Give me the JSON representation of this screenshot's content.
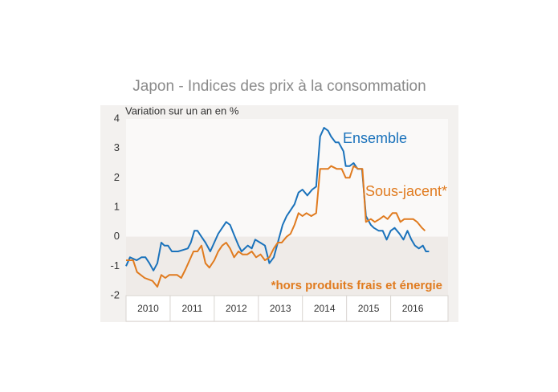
{
  "chart_data": {
    "type": "line",
    "title": "Japon - Indices des prix à la consommation",
    "y_label": "Variation sur un an en %",
    "annotation": "*hors produits frais et énergie",
    "xlim": [
      2010,
      2017.3
    ],
    "xticks": [
      {
        "value": 2010,
        "label": "2010"
      },
      {
        "value": 2011,
        "label": "2011"
      },
      {
        "value": 2012,
        "label": "2012"
      },
      {
        "value": 2013,
        "label": "2013"
      },
      {
        "value": 2014,
        "label": "2014"
      },
      {
        "value": 2015,
        "label": "2015"
      },
      {
        "value": 2016,
        "label": "2016"
      }
    ],
    "ylim": [
      -2,
      4
    ],
    "yticks": [
      -2,
      -1,
      0,
      1,
      2,
      3,
      4
    ],
    "series": [
      {
        "name": "Ensemble",
        "color": "#1a72bb",
        "x": [
          2010.0,
          2010.09,
          2010.24,
          2010.35,
          2010.44,
          2010.53,
          2010.62,
          2010.71,
          2010.8,
          2010.87,
          2010.95,
          2011.04,
          2011.18,
          2011.29,
          2011.4,
          2011.47,
          2011.55,
          2011.62,
          2011.71,
          2011.8,
          2011.91,
          2012.09,
          2012.27,
          2012.36,
          2012.44,
          2012.55,
          2012.62,
          2012.76,
          2012.85,
          2012.93,
          2013.04,
          2013.15,
          2013.25,
          2013.35,
          2013.44,
          2013.55,
          2013.64,
          2013.73,
          2013.82,
          2013.91,
          2014.0,
          2014.11,
          2014.22,
          2014.31,
          2014.4,
          2014.49,
          2014.58,
          2014.65,
          2014.75,
          2014.82,
          2014.93,
          2014.98,
          2015.07,
          2015.16,
          2015.25,
          2015.35,
          2015.44,
          2015.55,
          2015.62,
          2015.73,
          2015.82,
          2015.91,
          2016.0,
          2016.09,
          2016.2,
          2016.29,
          2016.38,
          2016.47,
          2016.55,
          2016.64,
          2016.73,
          2016.8,
          2016.87
        ],
        "values": [
          -1.0,
          -0.7,
          -0.8,
          -0.7,
          -0.7,
          -0.9,
          -1.15,
          -0.9,
          -0.2,
          -0.3,
          -0.3,
          -0.5,
          -0.5,
          -0.45,
          -0.4,
          -0.2,
          0.2,
          0.2,
          0.0,
          -0.2,
          -0.5,
          0.1,
          0.5,
          0.4,
          0.1,
          -0.3,
          -0.5,
          -0.3,
          -0.4,
          -0.1,
          -0.2,
          -0.3,
          -0.9,
          -0.7,
          -0.2,
          0.4,
          0.7,
          0.9,
          1.1,
          1.5,
          1.6,
          1.4,
          1.6,
          1.7,
          3.4,
          3.7,
          3.6,
          3.4,
          3.2,
          3.2,
          2.9,
          2.4,
          2.4,
          2.5,
          2.3,
          2.3,
          0.7,
          0.4,
          0.3,
          0.2,
          0.2,
          -0.1,
          0.2,
          0.3,
          0.1,
          -0.1,
          0.2,
          -0.1,
          -0.3,
          -0.4,
          -0.3,
          -0.5,
          -0.5
        ]
      },
      {
        "name": "Sous-jacent*",
        "color": "#e07b1f",
        "x": [
          2010.0,
          2010.16,
          2010.25,
          2010.42,
          2010.6,
          2010.71,
          2010.8,
          2010.89,
          2010.98,
          2011.16,
          2011.25,
          2011.35,
          2011.44,
          2011.53,
          2011.62,
          2011.71,
          2011.8,
          2011.89,
          2012.0,
          2012.09,
          2012.18,
          2012.27,
          2012.36,
          2012.45,
          2012.55,
          2012.64,
          2012.75,
          2012.85,
          2012.95,
          2013.05,
          2013.15,
          2013.25,
          2013.35,
          2013.44,
          2013.53,
          2013.64,
          2013.73,
          2013.82,
          2013.91,
          2014.0,
          2014.09,
          2014.2,
          2014.31,
          2014.4,
          2014.58,
          2014.65,
          2014.78,
          2014.89,
          2014.98,
          2015.07,
          2015.16,
          2015.27,
          2015.36,
          2015.44,
          2015.55,
          2015.64,
          2015.75,
          2015.84,
          2015.93,
          2016.04,
          2016.13,
          2016.22,
          2016.31,
          2016.51,
          2016.6,
          2016.71,
          2016.78
        ],
        "values": [
          -0.8,
          -0.8,
          -1.2,
          -1.4,
          -1.5,
          -1.7,
          -1.3,
          -1.4,
          -1.3,
          -1.3,
          -1.4,
          -1.1,
          -0.8,
          -0.5,
          -0.5,
          -0.3,
          -0.9,
          -1.05,
          -0.8,
          -0.5,
          -0.3,
          -0.2,
          -0.4,
          -0.7,
          -0.5,
          -0.6,
          -0.6,
          -0.5,
          -0.7,
          -0.6,
          -0.8,
          -0.7,
          -0.4,
          -0.2,
          -0.2,
          0.0,
          0.1,
          0.4,
          0.8,
          0.7,
          0.8,
          0.7,
          0.8,
          2.3,
          2.3,
          2.4,
          2.3,
          2.3,
          2.0,
          2.0,
          2.4,
          2.3,
          2.3,
          0.5,
          0.6,
          0.5,
          0.6,
          0.7,
          0.6,
          0.8,
          0.8,
          0.5,
          0.6,
          0.6,
          0.5,
          0.3,
          0.2
        ]
      }
    ]
  }
}
